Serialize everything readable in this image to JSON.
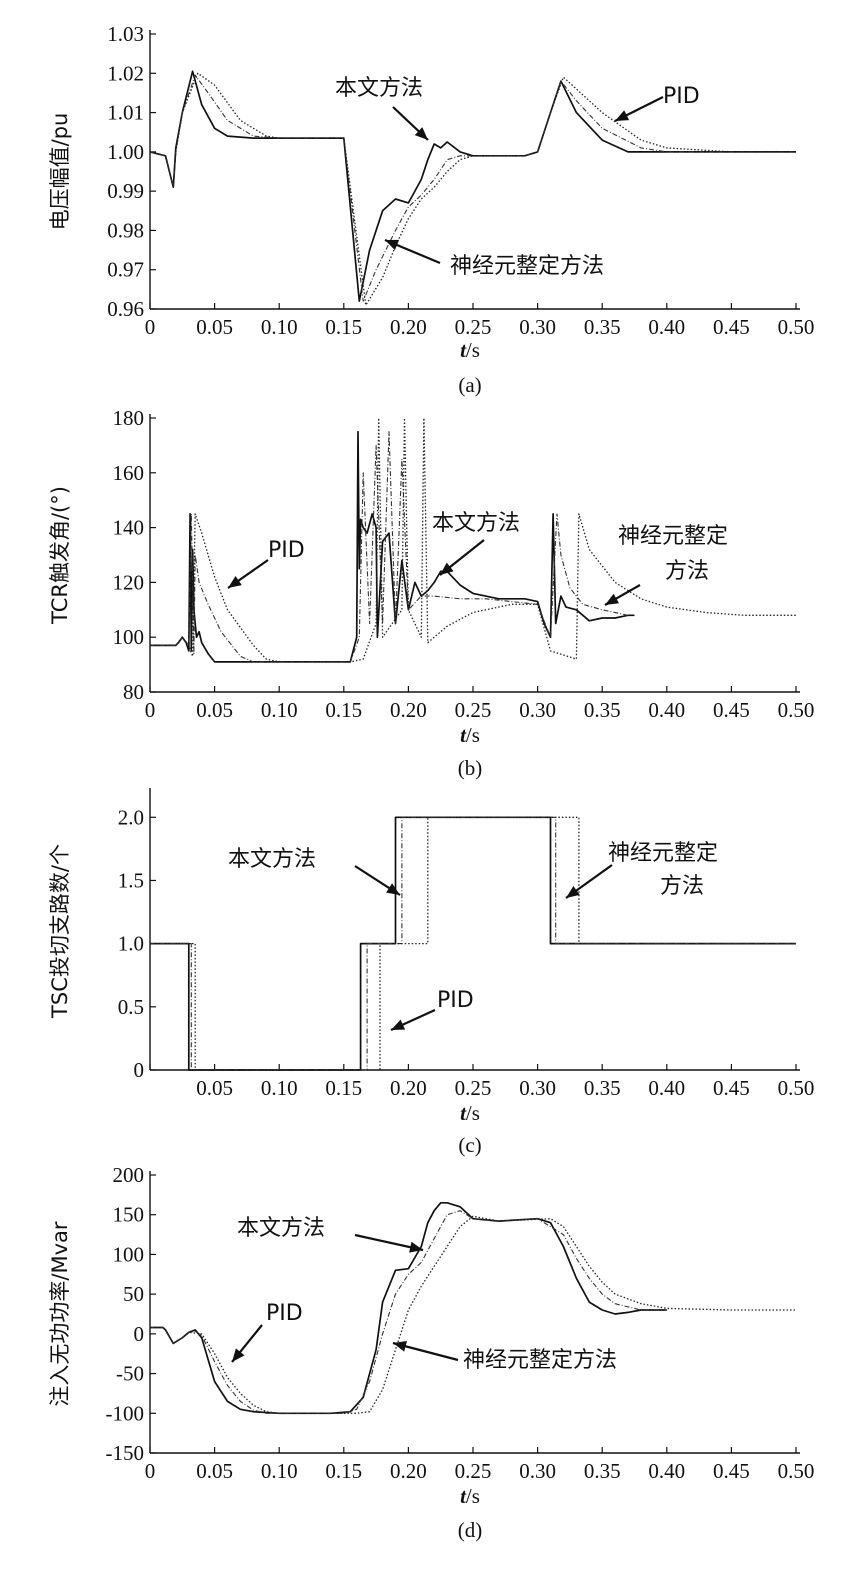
{
  "figure": {
    "x_tick_values": [
      0,
      0.05,
      0.1,
      0.15,
      0.2,
      0.25,
      0.3,
      0.35,
      0.4,
      0.45,
      0.5
    ],
    "x_tick_labels": [
      "0",
      "0.05",
      "0.10",
      "0.15",
      "0.20",
      "0.25",
      "0.30",
      "0.35",
      "0.40",
      "0.45",
      "0.50"
    ],
    "x_label_italic": "t",
    "x_label_unit": "/s"
  },
  "chart_data": [
    {
      "id": "a",
      "type": "line",
      "caption": "(a)",
      "xlabel": "t/s",
      "ylabel": "电压幅值/pu",
      "xlim": [
        0,
        0.5
      ],
      "ylim": [
        0.96,
        1.03
      ],
      "y_ticks": [
        "0.96",
        "0.97",
        "0.98",
        "0.99",
        "1.00",
        "1.01",
        "1.02",
        "1.03"
      ],
      "y_tick_values": [
        0.96,
        0.97,
        0.98,
        0.99,
        1.0,
        1.01,
        1.02,
        1.03
      ],
      "series": [
        {
          "name": "本文方法",
          "style": "solid",
          "x": [
            0,
            0.012,
            0.015,
            0.018,
            0.02,
            0.025,
            0.033,
            0.04,
            0.05,
            0.06,
            0.08,
            0.1,
            0.12,
            0.15,
            0.162,
            0.17,
            0.18,
            0.19,
            0.2,
            0.205,
            0.21,
            0.215,
            0.22,
            0.225,
            0.23,
            0.24,
            0.25,
            0.27,
            0.29,
            0.3,
            0.31,
            0.318,
            0.33,
            0.35,
            0.37,
            0.4,
            0.45,
            0.5
          ],
          "y": [
            1.0,
            0.999,
            0.995,
            0.991,
            1.001,
            1.01,
            1.0205,
            1.012,
            1.006,
            1.004,
            1.0035,
            1.0035,
            1.0035,
            1.0035,
            0.962,
            0.975,
            0.985,
            0.988,
            0.987,
            0.99,
            0.993,
            0.998,
            1.002,
            1.001,
            1.0025,
            1.0,
            0.999,
            0.999,
            0.999,
            1.0,
            1.01,
            1.018,
            1.01,
            1.003,
            1.0,
            1.0,
            1.0,
            1.0
          ]
        },
        {
          "name": "神经元整定方法",
          "style": "dashdot",
          "x": [
            0,
            0.012,
            0.015,
            0.018,
            0.02,
            0.025,
            0.035,
            0.045,
            0.06,
            0.08,
            0.1,
            0.12,
            0.15,
            0.165,
            0.175,
            0.19,
            0.2,
            0.21,
            0.22,
            0.23,
            0.24,
            0.25,
            0.27,
            0.29,
            0.3,
            0.31,
            0.318,
            0.33,
            0.35,
            0.38,
            0.4,
            0.45,
            0.5
          ],
          "y": [
            1.0,
            0.999,
            0.995,
            0.991,
            1.0,
            1.01,
            1.0195,
            1.015,
            1.008,
            1.004,
            1.0035,
            1.0035,
            1.0035,
            0.962,
            0.97,
            0.98,
            0.986,
            0.989,
            0.993,
            0.998,
            0.999,
            0.999,
            0.999,
            0.999,
            1.0,
            1.01,
            1.018,
            1.013,
            1.006,
            1.001,
            1.0,
            1.0,
            1.0
          ]
        },
        {
          "name": "PID",
          "style": "dotted",
          "x": [
            0,
            0.012,
            0.015,
            0.018,
            0.02,
            0.025,
            0.037,
            0.05,
            0.07,
            0.09,
            0.1,
            0.12,
            0.15,
            0.167,
            0.18,
            0.19,
            0.2,
            0.21,
            0.22,
            0.23,
            0.24,
            0.25,
            0.27,
            0.29,
            0.3,
            0.31,
            0.32,
            0.33,
            0.35,
            0.38,
            0.4,
            0.45,
            0.5
          ],
          "y": [
            1.0,
            0.999,
            0.995,
            0.991,
            1.0,
            1.01,
            1.02,
            1.017,
            1.008,
            1.004,
            1.0035,
            1.0035,
            1.0035,
            0.961,
            0.968,
            0.976,
            0.983,
            0.988,
            0.991,
            0.995,
            0.998,
            0.999,
            0.999,
            0.999,
            1.0,
            1.01,
            1.019,
            1.016,
            1.01,
            1.003,
            1.001,
            1.0,
            1.0
          ]
        }
      ],
      "annotations": [
        {
          "text": "本文方法",
          "target_series": "本文方法"
        },
        {
          "text": "PID",
          "target_series": "PID"
        },
        {
          "text": "神经元整定方法",
          "target_series": "神经元整定方法"
        }
      ]
    },
    {
      "id": "b",
      "type": "line",
      "caption": "(b)",
      "xlabel": "t/s",
      "ylabel": "TCR触发角/(°)",
      "xlim": [
        0,
        0.5
      ],
      "ylim": [
        80,
        180
      ],
      "y_ticks": [
        "80",
        "100",
        "120",
        "140",
        "160",
        "180"
      ],
      "y_tick_values": [
        80,
        100,
        120,
        140,
        160,
        180
      ],
      "series": [
        {
          "name": "本文方法",
          "style": "solid",
          "x": [
            0,
            0.02,
            0.022,
            0.025,
            0.028,
            0.03,
            0.031,
            0.032,
            0.033,
            0.034,
            0.036,
            0.038,
            0.04,
            0.045,
            0.05,
            0.06,
            0.1,
            0.155,
            0.16,
            0.161,
            0.162,
            0.163,
            0.165,
            0.168,
            0.172,
            0.175,
            0.176,
            0.18,
            0.185,
            0.19,
            0.195,
            0.2,
            0.205,
            0.21,
            0.215,
            0.22,
            0.225,
            0.23,
            0.24,
            0.25,
            0.27,
            0.29,
            0.3,
            0.305,
            0.31,
            0.312,
            0.314,
            0.318,
            0.322,
            0.33,
            0.34,
            0.35,
            0.36,
            0.37,
            0.375
          ],
          "y": [
            97,
            97,
            98,
            100,
            98,
            95,
            145,
            95,
            132,
            110,
            100,
            102,
            98,
            94,
            91,
            91,
            91,
            91,
            100,
            175,
            125,
            143,
            140,
            138,
            145,
            140,
            100,
            135,
            138,
            105,
            128,
            110,
            120,
            115,
            117,
            120,
            124,
            124,
            119,
            116,
            114,
            114,
            113,
            105,
            100,
            145,
            105,
            115,
            111,
            110,
            106,
            107,
            107,
            108,
            108
          ]
        },
        {
          "name": "神经元整定方法",
          "style": "dashdot",
          "x": [
            0,
            0.02,
            0.025,
            0.03,
            0.032,
            0.034,
            0.035,
            0.038,
            0.045,
            0.055,
            0.07,
            0.08,
            0.1,
            0.155,
            0.162,
            0.165,
            0.17,
            0.175,
            0.18,
            0.185,
            0.19,
            0.195,
            0.2,
            0.21,
            0.22,
            0.24,
            0.26,
            0.28,
            0.3,
            0.31,
            0.315,
            0.318,
            0.325,
            0.335,
            0.35,
            0.37
          ],
          "y": [
            97,
            97,
            100,
            97,
            145,
            94,
            130,
            120,
            112,
            102,
            93,
            91,
            91,
            91,
            100,
            160,
            105,
            170,
            105,
            175,
            105,
            165,
            110,
            115,
            115,
            114,
            114,
            113,
            112,
            100,
            145,
            130,
            118,
            112,
            110,
            108
          ]
        },
        {
          "name": "PID",
          "style": "dotted",
          "x": [
            0,
            0.02,
            0.025,
            0.03,
            0.033,
            0.035,
            0.04,
            0.05,
            0.06,
            0.08,
            0.09,
            0.1,
            0.155,
            0.165,
            0.175,
            0.177,
            0.18,
            0.195,
            0.197,
            0.2,
            0.21,
            0.212,
            0.215,
            0.22,
            0.23,
            0.25,
            0.28,
            0.3,
            0.31,
            0.33,
            0.332,
            0.34,
            0.36,
            0.38,
            0.4,
            0.43,
            0.46,
            0.5
          ],
          "y": [
            97,
            97,
            100,
            97,
            93,
            145,
            138,
            122,
            110,
            97,
            92,
            91,
            91,
            92,
            105,
            180,
            100,
            110,
            180,
            110,
            100,
            180,
            98,
            100,
            104,
            109,
            112,
            112,
            95,
            92,
            145,
            132,
            120,
            114,
            111,
            109,
            108,
            108
          ]
        }
      ],
      "annotations": [
        {
          "text": "PID",
          "target_series": "PID"
        },
        {
          "text": "本文方法",
          "target_series": "本文方法"
        },
        {
          "text": "神经元整定",
          "target_series": "神经元整定方法"
        },
        {
          "text": "方法",
          "target_series": "神经元整定方法"
        }
      ]
    },
    {
      "id": "c",
      "type": "line",
      "caption": "(c)",
      "xlabel": "t/s",
      "ylabel": "TSC投切支路数/个",
      "xlim": [
        0,
        0.5
      ],
      "ylim": [
        0,
        2.2
      ],
      "y_ticks": [
        "0",
        "0.5",
        "1.0",
        "1.5",
        "2.0"
      ],
      "y_tick_values": [
        0,
        0.5,
        1.0,
        1.5,
        2.0
      ],
      "series": [
        {
          "name": "本文方法",
          "style": "solid",
          "x": [
            0,
            0.03,
            0.03,
            0.163,
            0.163,
            0.19,
            0.19,
            0.31,
            0.31,
            0.5
          ],
          "y": [
            1,
            1,
            0,
            0,
            1,
            1,
            2,
            2,
            1,
            1
          ]
        },
        {
          "name": "神经元整定方法",
          "style": "dashdot",
          "x": [
            0,
            0.032,
            0.032,
            0.168,
            0.168,
            0.195,
            0.195,
            0.314,
            0.314,
            0.5
          ],
          "y": [
            1,
            1,
            0,
            0,
            1,
            1,
            2,
            2,
            1,
            1
          ]
        },
        {
          "name": "PID",
          "style": "dotted",
          "x": [
            0,
            0.035,
            0.035,
            0.178,
            0.178,
            0.215,
            0.215,
            0.332,
            0.332,
            0.5
          ],
          "y": [
            1,
            1,
            0,
            0,
            1,
            1,
            2,
            2,
            1,
            1
          ]
        }
      ],
      "annotations": [
        {
          "text": "本文方法",
          "target_series": "本文方法"
        },
        {
          "text": "神经元整定",
          "target_series": "神经元整定方法"
        },
        {
          "text": "方法",
          "target_series": "神经元整定方法"
        },
        {
          "text": "PID",
          "target_series": "PID"
        }
      ]
    },
    {
      "id": "d",
      "type": "line",
      "caption": "(d)",
      "xlabel": "t/s",
      "ylabel": "注入无功功率/Mvar",
      "xlim": [
        0,
        0.5
      ],
      "ylim": [
        -150,
        200
      ],
      "y_ticks": [
        "-150",
        "-100",
        "-50",
        "0",
        "50",
        "100",
        "150",
        "200"
      ],
      "y_tick_values": [
        -150,
        -100,
        -50,
        0,
        50,
        100,
        150,
        200
      ],
      "series": [
        {
          "name": "本文方法",
          "style": "solid",
          "x": [
            0,
            0.01,
            0.012,
            0.018,
            0.022,
            0.025,
            0.03,
            0.035,
            0.04,
            0.05,
            0.06,
            0.07,
            0.08,
            0.1,
            0.12,
            0.14,
            0.155,
            0.165,
            0.175,
            0.18,
            0.19,
            0.2,
            0.21,
            0.215,
            0.22,
            0.225,
            0.23,
            0.24,
            0.25,
            0.27,
            0.3,
            0.31,
            0.32,
            0.33,
            0.34,
            0.35,
            0.36,
            0.37,
            0.38,
            0.4
          ],
          "y": [
            8,
            8,
            5,
            -12,
            -8,
            -5,
            2,
            5,
            -5,
            -60,
            -85,
            -95,
            -98,
            -100,
            -100,
            -100,
            -98,
            -80,
            -20,
            40,
            80,
            82,
            110,
            140,
            155,
            165,
            165,
            160,
            145,
            142,
            145,
            140,
            110,
            70,
            40,
            30,
            25,
            27,
            30,
            30
          ]
        },
        {
          "name": "神经元整定方法",
          "style": "dashdot",
          "x": [
            0,
            0.01,
            0.012,
            0.018,
            0.022,
            0.025,
            0.03,
            0.035,
            0.04,
            0.05,
            0.06,
            0.07,
            0.08,
            0.09,
            0.1,
            0.12,
            0.15,
            0.16,
            0.17,
            0.18,
            0.19,
            0.2,
            0.21,
            0.22,
            0.23,
            0.24,
            0.25,
            0.27,
            0.3,
            0.32,
            0.33,
            0.34,
            0.35,
            0.36,
            0.38,
            0.4
          ],
          "y": [
            8,
            8,
            5,
            -12,
            -8,
            -5,
            2,
            3,
            -2,
            -35,
            -65,
            -85,
            -96,
            -100,
            -100,
            -100,
            -100,
            -95,
            -60,
            0,
            50,
            75,
            90,
            120,
            150,
            155,
            145,
            142,
            145,
            125,
            95,
            70,
            50,
            38,
            30,
            30
          ]
        },
        {
          "name": "PID",
          "style": "dotted",
          "x": [
            0,
            0.01,
            0.012,
            0.018,
            0.022,
            0.025,
            0.03,
            0.04,
            0.05,
            0.06,
            0.07,
            0.08,
            0.09,
            0.1,
            0.12,
            0.15,
            0.16,
            0.17,
            0.18,
            0.19,
            0.2,
            0.21,
            0.22,
            0.23,
            0.24,
            0.25,
            0.27,
            0.31,
            0.32,
            0.33,
            0.34,
            0.35,
            0.36,
            0.38,
            0.4,
            0.45,
            0.5
          ],
          "y": [
            8,
            8,
            5,
            -12,
            -8,
            -5,
            2,
            0,
            -25,
            -55,
            -75,
            -90,
            -98,
            -100,
            -100,
            -100,
            -100,
            -98,
            -70,
            -20,
            30,
            60,
            85,
            110,
            135,
            148,
            142,
            145,
            135,
            110,
            85,
            65,
            50,
            38,
            32,
            30,
            30
          ]
        }
      ],
      "annotations": [
        {
          "text": "本文方法",
          "target_series": "本文方法"
        },
        {
          "text": "PID",
          "target_series": "PID"
        },
        {
          "text": "神经元整定方法",
          "target_series": "神经元整定方法"
        }
      ]
    }
  ]
}
